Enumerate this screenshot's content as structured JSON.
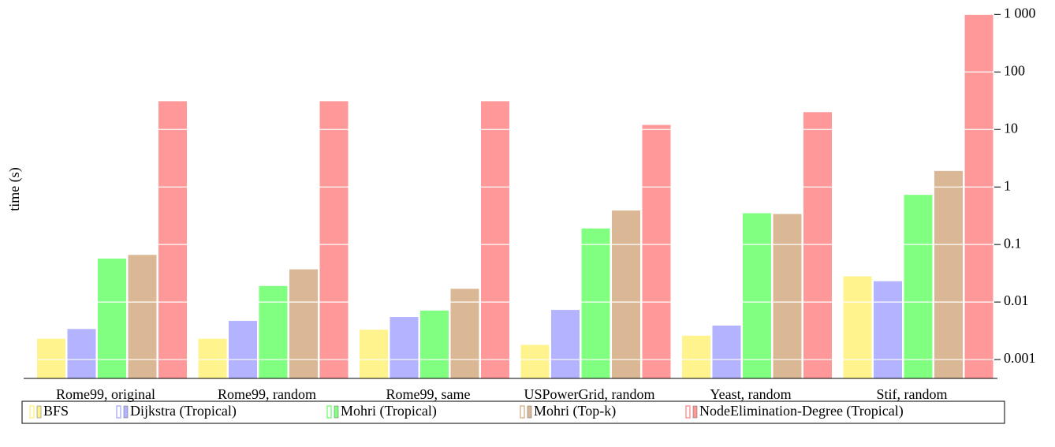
{
  "chart_data": {
    "type": "bar",
    "y_label": "time (s)",
    "log_scale": true,
    "grid": true,
    "legend_position": "bottom",
    "categories": [
      "Rome99, original",
      "Rome99, random",
      "Rome99, same",
      "USPowerGrid, random",
      "Yeast, random",
      "Stif, random"
    ],
    "series": [
      {
        "name": "BFS",
        "color": "#fff38e",
        "values": [
          0.0023,
          0.0023,
          0.0033,
          0.0018,
          0.0026,
          0.028
        ]
      },
      {
        "name": "Dijkstra (Tropical)",
        "color": "#b3b3ff",
        "values": [
          0.0034,
          0.0047,
          0.0055,
          0.0073,
          0.0039,
          0.023
        ]
      },
      {
        "name": "Mohri (Tropical)",
        "color": "#80ff80",
        "values": [
          0.057,
          0.019,
          0.0071,
          0.19,
          0.35,
          0.73
        ]
      },
      {
        "name": "Mohri (Top-k)",
        "color": "#dbb895",
        "values": [
          0.066,
          0.037,
          0.017,
          0.39,
          0.34,
          1.9
        ]
      },
      {
        "name": "NodeElimination-Degree (Tropical)",
        "color": "#ff9999",
        "values": [
          31,
          31,
          31,
          12,
          20,
          1000
        ]
      }
    ],
    "ylim": [
      0.00047,
      1300
    ],
    "yticks": [
      0.001,
      0.01,
      0.1,
      1,
      10,
      100,
      {
        "value": 1000,
        "label": "1 000"
      }
    ]
  }
}
